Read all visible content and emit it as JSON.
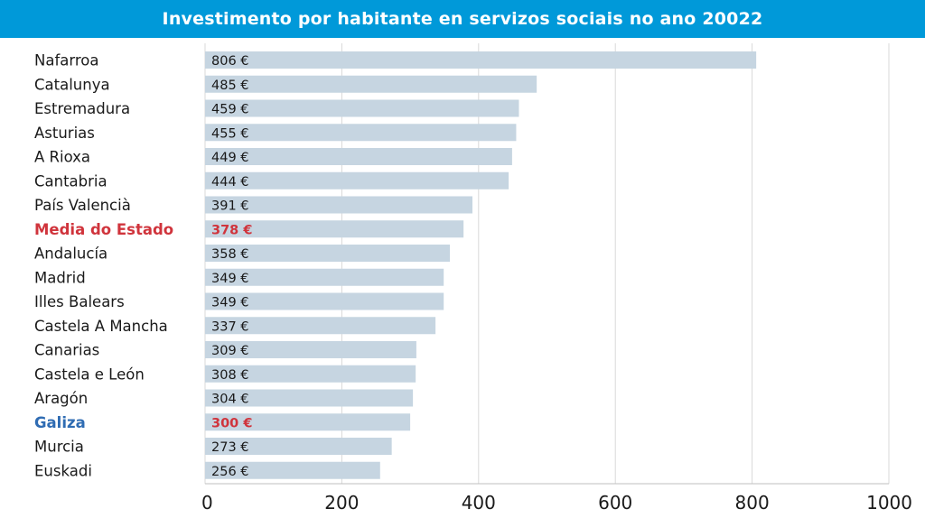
{
  "colors": {
    "header_bg": "#0099d9",
    "bar": "#c6d5e1",
    "label": "#1a1a1a",
    "highlight_red": "#d0343c",
    "highlight_blue": "#2f6cb3",
    "grid": "#d9d9d9"
  },
  "chart_data": {
    "type": "bar",
    "orientation": "horizontal",
    "title": "Investimento por habitante en servizos sociais no ano 20022",
    "xlabel": "",
    "ylabel": "",
    "xlim": [
      0,
      1000
    ],
    "x_ticks": [
      0,
      200,
      400,
      600,
      800,
      1000
    ],
    "x_tick_labels": [
      "0",
      "200",
      "400",
      "600",
      "800",
      "1000"
    ],
    "grid": "vertical",
    "categories": [
      "Nafarroa",
      "Catalunya",
      "Estremadura",
      "Asturias",
      "A Rioxa",
      "Cantabria",
      "País Valencià",
      "Media do Estado",
      "Andalucía",
      "Madrid",
      "Illes Balears",
      "Castela A Mancha",
      "Canarias",
      "Castela e León",
      "Aragón",
      "Galiza",
      "Murcia",
      "Euskadi"
    ],
    "values": [
      806,
      485,
      459,
      455,
      449,
      444,
      391,
      378,
      358,
      349,
      349,
      337,
      309,
      308,
      304,
      300,
      273,
      256
    ],
    "value_labels": [
      "806 €",
      "485 €",
      "459 €",
      "455 €",
      "449 €",
      "444 €",
      "391 €",
      "378 €",
      "358 €",
      "349 €",
      "349 €",
      "337 €",
      "309 €",
      "308 €",
      "304 €",
      "300 €",
      "273 €",
      "256 €"
    ],
    "category_styles": [
      "normal",
      "normal",
      "normal",
      "normal",
      "normal",
      "normal",
      "normal",
      "red",
      "normal",
      "normal",
      "normal",
      "normal",
      "normal",
      "normal",
      "normal",
      "blue",
      "normal",
      "normal"
    ],
    "value_label_styles": [
      "normal",
      "normal",
      "normal",
      "normal",
      "normal",
      "normal",
      "normal",
      "red",
      "normal",
      "normal",
      "normal",
      "normal",
      "normal",
      "normal",
      "normal",
      "red",
      "normal",
      "normal"
    ]
  }
}
